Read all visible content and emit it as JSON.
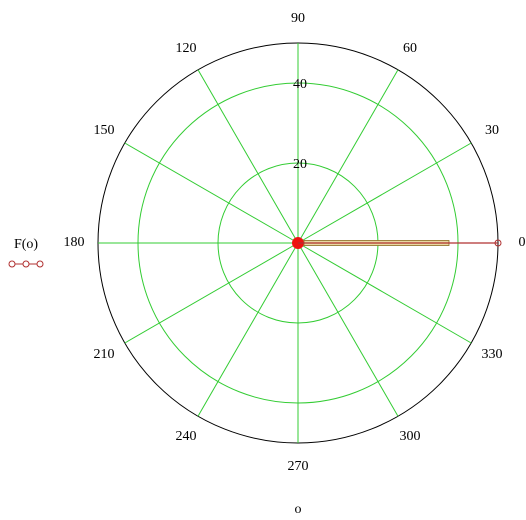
{
  "chart_data": {
    "type": "polar",
    "xlabel": "o",
    "series": [
      {
        "name": "F(o)",
        "color": "#b03030",
        "theta": [
          0,
          0
        ],
        "r": [
          0,
          50
        ]
      }
    ],
    "rlim": [
      0,
      50
    ],
    "rticks": [
      20,
      40
    ],
    "thetaticks": [
      0,
      30,
      60,
      90,
      120,
      150,
      180,
      210,
      240,
      270,
      300,
      330
    ],
    "grid": true,
    "grid_color": "#33cc33"
  }
}
